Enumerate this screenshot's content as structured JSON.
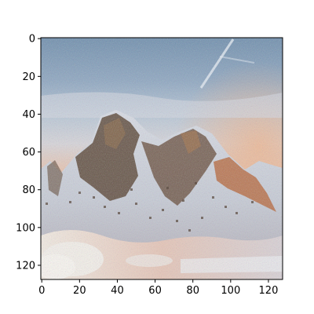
{
  "figure": {
    "kind": "image-plot",
    "image_subject": "snow-capped mountain range under a pale sky",
    "x_axis": {
      "ticks": [
        "0",
        "20",
        "40",
        "60",
        "80",
        "100",
        "120"
      ],
      "tick_values": [
        0,
        20,
        40,
        60,
        80,
        100,
        120
      ],
      "range": [
        -0.5,
        127.5
      ]
    },
    "y_axis": {
      "ticks": [
        "0",
        "20",
        "40",
        "60",
        "80",
        "100",
        "120"
      ],
      "tick_values": [
        0,
        20,
        40,
        60,
        80,
        100,
        120
      ],
      "range": [
        -0.5,
        127.5
      ],
      "inverted": true
    },
    "colors": {
      "axis": "#000000",
      "background": "#ffffff",
      "sky_top": "#6f8fae",
      "sky_mid": "#b9c8d8",
      "haze_warm": "#e8c4b0",
      "rock_dark": "#5a4636",
      "rock_orange": "#b7683d",
      "snow": "#e9eef5",
      "foreground_light": "#f2ede8"
    }
  }
}
